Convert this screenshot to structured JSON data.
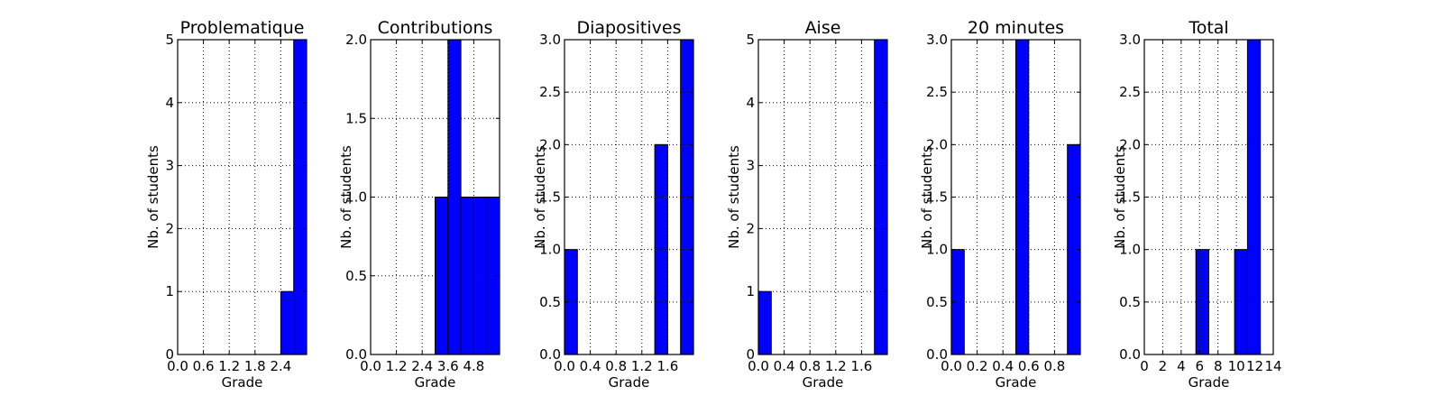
{
  "chart_data": [
    {
      "type": "bar",
      "title": "Problematique",
      "xlabel": "Grade",
      "ylabel": "Nb. of students",
      "xlim": [
        0,
        3
      ],
      "ylim": [
        0,
        5
      ],
      "xticks": [
        "0.0",
        "0.6",
        "1.2",
        "1.8",
        "2.4"
      ],
      "xtick_values": [
        0,
        0.6,
        1.2,
        1.8,
        2.4
      ],
      "yticks": [
        "0",
        "1",
        "2",
        "3",
        "4",
        "5"
      ],
      "ytick_values": [
        0,
        1,
        2,
        3,
        4,
        5
      ],
      "bin_edges": [
        0,
        0.3,
        0.6,
        0.9,
        1.2,
        1.5,
        1.8,
        2.1,
        2.4,
        2.7,
        3.0
      ],
      "values": [
        0,
        0,
        0,
        0,
        0,
        0,
        0,
        0,
        1,
        5
      ],
      "grid": true,
      "bar_color": "#0000ff"
    },
    {
      "type": "bar",
      "title": "Contributions",
      "xlabel": "Grade",
      "ylabel": "Nb. of students",
      "xlim": [
        0,
        6
      ],
      "ylim": [
        0,
        2
      ],
      "xticks": [
        "0.0",
        "1.2",
        "2.4",
        "3.6",
        "4.8"
      ],
      "xtick_values": [
        0,
        1.2,
        2.4,
        3.6,
        4.8
      ],
      "yticks": [
        "0.0",
        "0.5",
        "1.0",
        "1.5",
        "2.0"
      ],
      "ytick_values": [
        0,
        0.5,
        1,
        1.5,
        2
      ],
      "bin_edges": [
        0,
        0.6,
        1.2,
        1.8,
        2.4,
        3.0,
        3.6,
        4.2,
        4.8,
        5.4,
        6.0
      ],
      "values": [
        0,
        0,
        0,
        0,
        0,
        1,
        2,
        1,
        1,
        1
      ],
      "grid": true,
      "bar_color": "#0000ff"
    },
    {
      "type": "bar",
      "title": "Diapositives",
      "xlabel": "Grade",
      "ylabel": "Nb. of students",
      "xlim": [
        0,
        2
      ],
      "ylim": [
        0,
        3
      ],
      "xticks": [
        "0.0",
        "0.4",
        "0.8",
        "1.2",
        "1.6"
      ],
      "xtick_values": [
        0,
        0.4,
        0.8,
        1.2,
        1.6
      ],
      "yticks": [
        "0.0",
        "0.5",
        "1.0",
        "1.5",
        "2.0",
        "2.5",
        "3.0"
      ],
      "ytick_values": [
        0,
        0.5,
        1,
        1.5,
        2,
        2.5,
        3
      ],
      "bin_edges": [
        0,
        0.2,
        0.4,
        0.6,
        0.8,
        1.0,
        1.2,
        1.4,
        1.6,
        1.8,
        2.0
      ],
      "values": [
        1,
        0,
        0,
        0,
        0,
        0,
        0,
        2,
        0,
        3
      ],
      "grid": true,
      "bar_color": "#0000ff"
    },
    {
      "type": "bar",
      "title": "Aise",
      "xlabel": "Grade",
      "ylabel": "Nb. of students",
      "xlim": [
        0,
        2
      ],
      "ylim": [
        0,
        5
      ],
      "xticks": [
        "0.0",
        "0.4",
        "0.8",
        "1.2",
        "1.6"
      ],
      "xtick_values": [
        0,
        0.4,
        0.8,
        1.2,
        1.6
      ],
      "yticks": [
        "0",
        "1",
        "2",
        "3",
        "4",
        "5"
      ],
      "ytick_values": [
        0,
        1,
        2,
        3,
        4,
        5
      ],
      "bin_edges": [
        0,
        0.2,
        0.4,
        0.6,
        0.8,
        1.0,
        1.2,
        1.4,
        1.6,
        1.8,
        2.0
      ],
      "values": [
        1,
        0,
        0,
        0,
        0,
        0,
        0,
        0,
        0,
        5
      ],
      "grid": true,
      "bar_color": "#0000ff"
    },
    {
      "type": "bar",
      "title": "20 minutes",
      "xlabel": "Grade",
      "ylabel": "Nb. of students",
      "xlim": [
        0,
        1
      ],
      "ylim": [
        0,
        3
      ],
      "xticks": [
        "0.0",
        "0.2",
        "0.4",
        "0.6",
        "0.8"
      ],
      "xtick_values": [
        0,
        0.2,
        0.4,
        0.6,
        0.8
      ],
      "yticks": [
        "0.0",
        "0.5",
        "1.0",
        "1.5",
        "2.0",
        "2.5",
        "3.0"
      ],
      "ytick_values": [
        0,
        0.5,
        1,
        1.5,
        2,
        2.5,
        3
      ],
      "bin_edges": [
        0,
        0.1,
        0.2,
        0.3,
        0.4,
        0.5,
        0.6,
        0.7,
        0.8,
        0.9,
        1.0
      ],
      "values": [
        1,
        0,
        0,
        0,
        0,
        3,
        0,
        0,
        0,
        2
      ],
      "grid": true,
      "bar_color": "#0000ff"
    },
    {
      "type": "bar",
      "title": "Total",
      "xlabel": "Grade",
      "ylabel": "Nb. of students",
      "xlim": [
        0,
        14
      ],
      "ylim": [
        0,
        3
      ],
      "xticks": [
        "0",
        "2",
        "4",
        "6",
        "8",
        "10",
        "12",
        "14"
      ],
      "xtick_values": [
        0,
        2,
        4,
        6,
        8,
        10,
        12,
        14
      ],
      "yticks": [
        "0.0",
        "0.5",
        "1.0",
        "1.5",
        "2.0",
        "2.5",
        "3.0"
      ],
      "ytick_values": [
        0,
        0.5,
        1,
        1.5,
        2,
        2.5,
        3
      ],
      "bin_edges": [
        0,
        1.4,
        2.8,
        4.2,
        5.6,
        7.0,
        8.4,
        9.8,
        11.2,
        12.6,
        14.0
      ],
      "values": [
        0,
        0,
        0,
        0,
        1,
        0,
        0,
        1,
        3,
        0
      ],
      "grid": true,
      "bar_color": "#0000ff"
    }
  ]
}
